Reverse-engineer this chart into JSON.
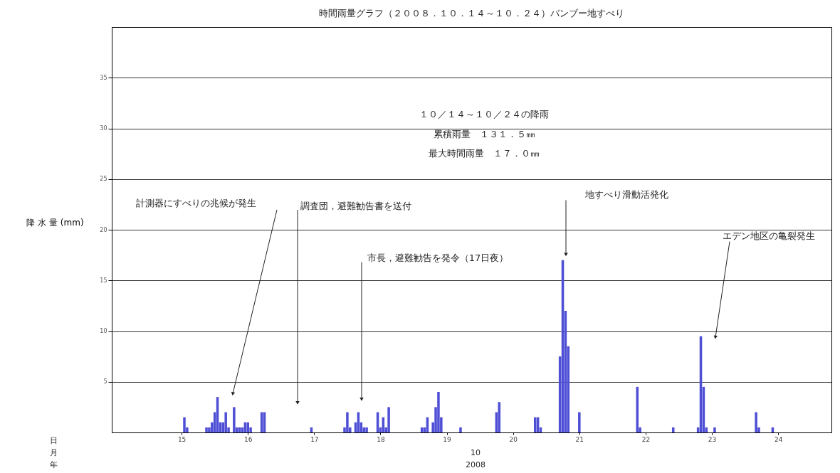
{
  "chart_data": {
    "type": "bar",
    "title": "時間雨量グラフ（２００８．１０．１４～１０．２４）バンブー地すべり",
    "ylabel": "降 水 量 (mm)",
    "x": [
      "2008-10-15T01:00",
      "2008-10-15T02:00",
      "2008-10-15T09:00",
      "2008-10-15T10:00",
      "2008-10-15T11:00",
      "2008-10-15T12:00",
      "2008-10-15T13:00",
      "2008-10-15T14:00",
      "2008-10-15T15:00",
      "2008-10-15T16:00",
      "2008-10-15T17:00",
      "2008-10-15T19:00",
      "2008-10-15T20:00",
      "2008-10-15T21:00",
      "2008-10-15T22:00",
      "2008-10-15T23:00",
      "2008-10-16T00:00",
      "2008-10-16T01:00",
      "2008-10-16T05:00",
      "2008-10-16T06:00",
      "2008-10-16T23:00",
      "2008-10-17T11:00",
      "2008-10-17T12:00",
      "2008-10-17T13:00",
      "2008-10-17T15:00",
      "2008-10-17T16:00",
      "2008-10-17T17:00",
      "2008-10-17T18:00",
      "2008-10-17T19:00",
      "2008-10-17T23:00",
      "2008-10-18T00:00",
      "2008-10-18T01:00",
      "2008-10-18T02:00",
      "2008-10-18T03:00",
      "2008-10-18T15:00",
      "2008-10-18T16:00",
      "2008-10-18T17:00",
      "2008-10-18T19:00",
      "2008-10-18T20:00",
      "2008-10-18T21:00",
      "2008-10-18T22:00",
      "2008-10-19T05:00",
      "2008-10-19T18:00",
      "2008-10-19T19:00",
      "2008-10-20T08:00",
      "2008-10-20T09:00",
      "2008-10-20T10:00",
      "2008-10-20T17:00",
      "2008-10-20T18:00",
      "2008-10-20T19:00",
      "2008-10-20T20:00",
      "2008-10-21T00:00",
      "2008-10-21T21:00",
      "2008-10-21T22:00",
      "2008-10-22T10:00",
      "2008-10-22T19:00",
      "2008-10-22T20:00",
      "2008-10-22T21:00",
      "2008-10-22T22:00",
      "2008-10-23T01:00",
      "2008-10-23T16:00",
      "2008-10-23T17:00",
      "2008-10-23T22:00"
    ],
    "values": [
      1.5,
      0.5,
      0.5,
      0.5,
      1.0,
      2.0,
      3.5,
      1.0,
      1.0,
      2.0,
      0.5,
      2.5,
      0.5,
      0.5,
      0.5,
      1.0,
      1.0,
      0.5,
      2.0,
      2.0,
      0.5,
      0.5,
      2.0,
      0.5,
      1.0,
      2.0,
      1.0,
      0.5,
      0.5,
      2.0,
      0.5,
      1.5,
      0.5,
      2.5,
      0.5,
      0.5,
      1.5,
      1.0,
      2.5,
      4.0,
      1.5,
      0.5,
      2.0,
      3.0,
      1.5,
      1.5,
      0.5,
      7.5,
      17.0,
      12.0,
      8.5,
      2.0,
      4.5,
      0.5,
      0.5,
      0.5,
      9.5,
      4.5,
      0.5,
      0.5,
      2.0,
      0.5,
      0.5
    ],
    "color": "#4f4fd6",
    "xlim": [
      "2008-10-14T00:00",
      "2008-10-24T18:00"
    ],
    "xticks": [
      {
        "value": "2008-10-15",
        "label": "15"
      },
      {
        "value": "2008-10-16",
        "label": "16"
      },
      {
        "value": "2008-10-17",
        "label": "17"
      },
      {
        "value": "2008-10-18",
        "label": "18"
      },
      {
        "value": "2008-10-19",
        "label": "19"
      },
      {
        "value": "2008-10-20",
        "label": "20"
      },
      {
        "value": "2008-10-21",
        "label": "21"
      },
      {
        "value": "2008-10-22",
        "label": "22"
      },
      {
        "value": "2008-10-23",
        "label": "23"
      },
      {
        "value": "2008-10-24",
        "label": "24"
      }
    ],
    "ylim": [
      0,
      40
    ],
    "yticks": [
      5,
      10,
      15,
      20,
      25,
      30,
      35
    ],
    "grid": "y",
    "annotations": [
      "計測器にすべりの兆候が発生",
      "調査団，避難勧告書を送付",
      "市長，避難勧告を発令（17日夜）",
      "地すべり滑動活発化",
      "エデン地区の亀裂発生",
      "１０／１４～１０／２４の降雨",
      "累積雨量　１３１．５㎜",
      "最大時間雨量　１７．０㎜",
      "日",
      "月",
      "年",
      "10",
      "2008"
    ]
  }
}
